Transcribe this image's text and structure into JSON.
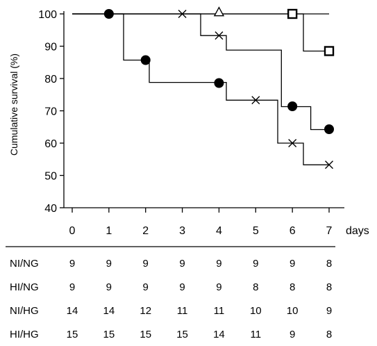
{
  "chart_data": {
    "type": "line",
    "subtype": "kaplan-meier step survival curves",
    "ylabel": "Cumulative survival (%)",
    "xlabel": "days",
    "xlim": [
      0,
      7
    ],
    "ylim": [
      40,
      100
    ],
    "x_ticks": [
      0,
      1,
      2,
      3,
      4,
      5,
      6,
      7
    ],
    "y_ticks": [
      40,
      50,
      60,
      70,
      80,
      90,
      100
    ],
    "x_tick_labels": [
      "0",
      "1",
      "2",
      "3",
      "4",
      "5",
      "6",
      "7"
    ],
    "y_tick_labels": [
      "40",
      "50",
      "60",
      "70",
      "80",
      "90",
      "100"
    ],
    "grid": false,
    "legend": "none",
    "series": [
      {
        "marker": "triangle",
        "steps": [
          [
            0,
            100
          ],
          [
            7,
            100
          ]
        ],
        "points": [
          [
            4,
            100.5
          ]
        ]
      },
      {
        "marker": "square",
        "steps": [
          [
            0,
            100
          ],
          [
            6.3,
            100
          ],
          [
            6.3,
            88.5
          ],
          [
            7,
            88.5
          ]
        ],
        "points": [
          [
            6,
            100
          ],
          [
            7,
            88.5
          ]
        ]
      },
      {
        "marker": "cross",
        "steps": [
          [
            0,
            100
          ],
          [
            3.5,
            100
          ],
          [
            3.5,
            93.3
          ],
          [
            4.2,
            93.3
          ],
          [
            4.2,
            88.8
          ],
          [
            5.7,
            88.8
          ],
          [
            5.7,
            71.3
          ],
          [
            6.5,
            71.3
          ],
          [
            6.5,
            64.2
          ],
          [
            7,
            64.2
          ]
        ],
        "points": [
          [
            3,
            100
          ],
          [
            4,
            93.3
          ],
          [
            5,
            73.3
          ],
          [
            6,
            60
          ],
          [
            7,
            53.3
          ]
        ]
      },
      {
        "marker": "circle",
        "steps": [
          [
            0,
            100
          ],
          [
            1.4,
            100
          ],
          [
            1.4,
            85.7
          ],
          [
            2.1,
            85.7
          ],
          [
            2.1,
            78.8
          ],
          [
            4.2,
            78.8
          ],
          [
            4.2,
            73.3
          ],
          [
            5.6,
            73.3
          ],
          [
            5.6,
            60
          ],
          [
            6.3,
            60
          ],
          [
            6.3,
            53.3
          ],
          [
            7,
            53.3
          ]
        ],
        "points": [
          [
            1,
            100
          ],
          [
            2,
            85.7
          ],
          [
            4,
            78.6
          ],
          [
            6,
            71.4
          ],
          [
            7,
            64.3
          ]
        ]
      }
    ],
    "table": {
      "columns": [
        "0",
        "1",
        "2",
        "3",
        "4",
        "5",
        "6",
        "7"
      ],
      "rows": [
        {
          "label": "NI/NG",
          "values": [
            "9",
            "9",
            "9",
            "9",
            "9",
            "9",
            "9",
            "8"
          ]
        },
        {
          "label": "HI/NG",
          "values": [
            "9",
            "9",
            "9",
            "9",
            "9",
            "8",
            "8",
            "8"
          ]
        },
        {
          "label": "NI/HG",
          "values": [
            "14",
            "14",
            "12",
            "11",
            "11",
            "10",
            "10",
            "9"
          ]
        },
        {
          "label": "HI/HG",
          "values": [
            "15",
            "15",
            "15",
            "15",
            "14",
            "11",
            "9",
            "8"
          ]
        }
      ]
    }
  }
}
